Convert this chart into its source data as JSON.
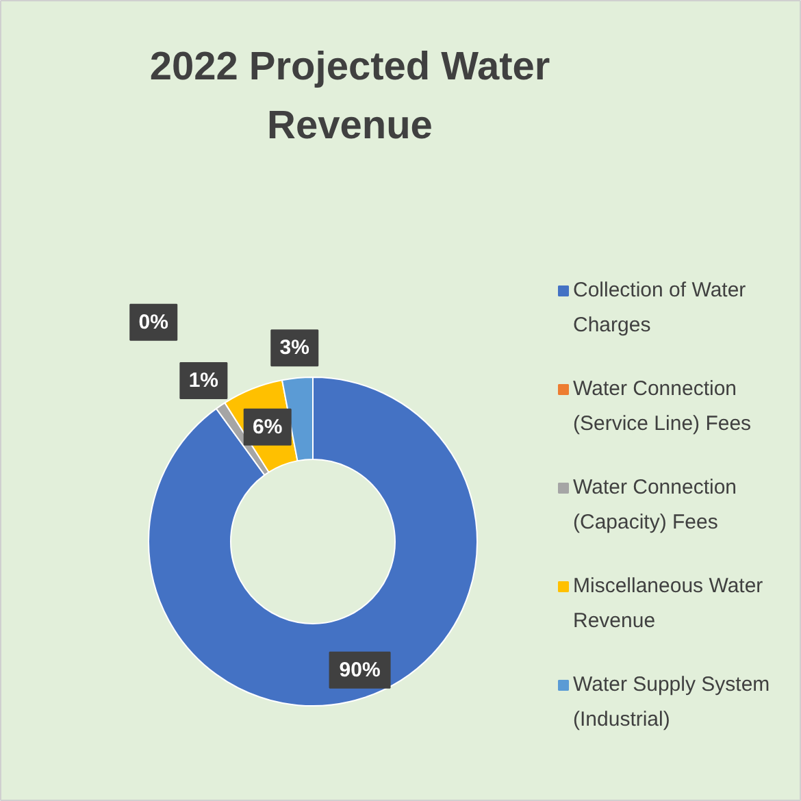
{
  "chart_data": {
    "type": "donut",
    "title": "2022 Projected Water Revenue",
    "categories": [
      "Collection of Water Charges",
      "Water Connection (Service Line) Fees",
      "Water Connection (Capacity) Fees",
      "Miscellaneous Water Revenue",
      "Water Supply System (Industrial)"
    ],
    "values": [
      90,
      0,
      1,
      6,
      3
    ],
    "colors": [
      "#4472c4",
      "#ed7d31",
      "#a5a5a5",
      "#ffc000",
      "#5b9bd5"
    ],
    "value_labels": [
      "90%",
      "0%",
      "1%",
      "6%",
      "3%"
    ],
    "legend": "right"
  }
}
